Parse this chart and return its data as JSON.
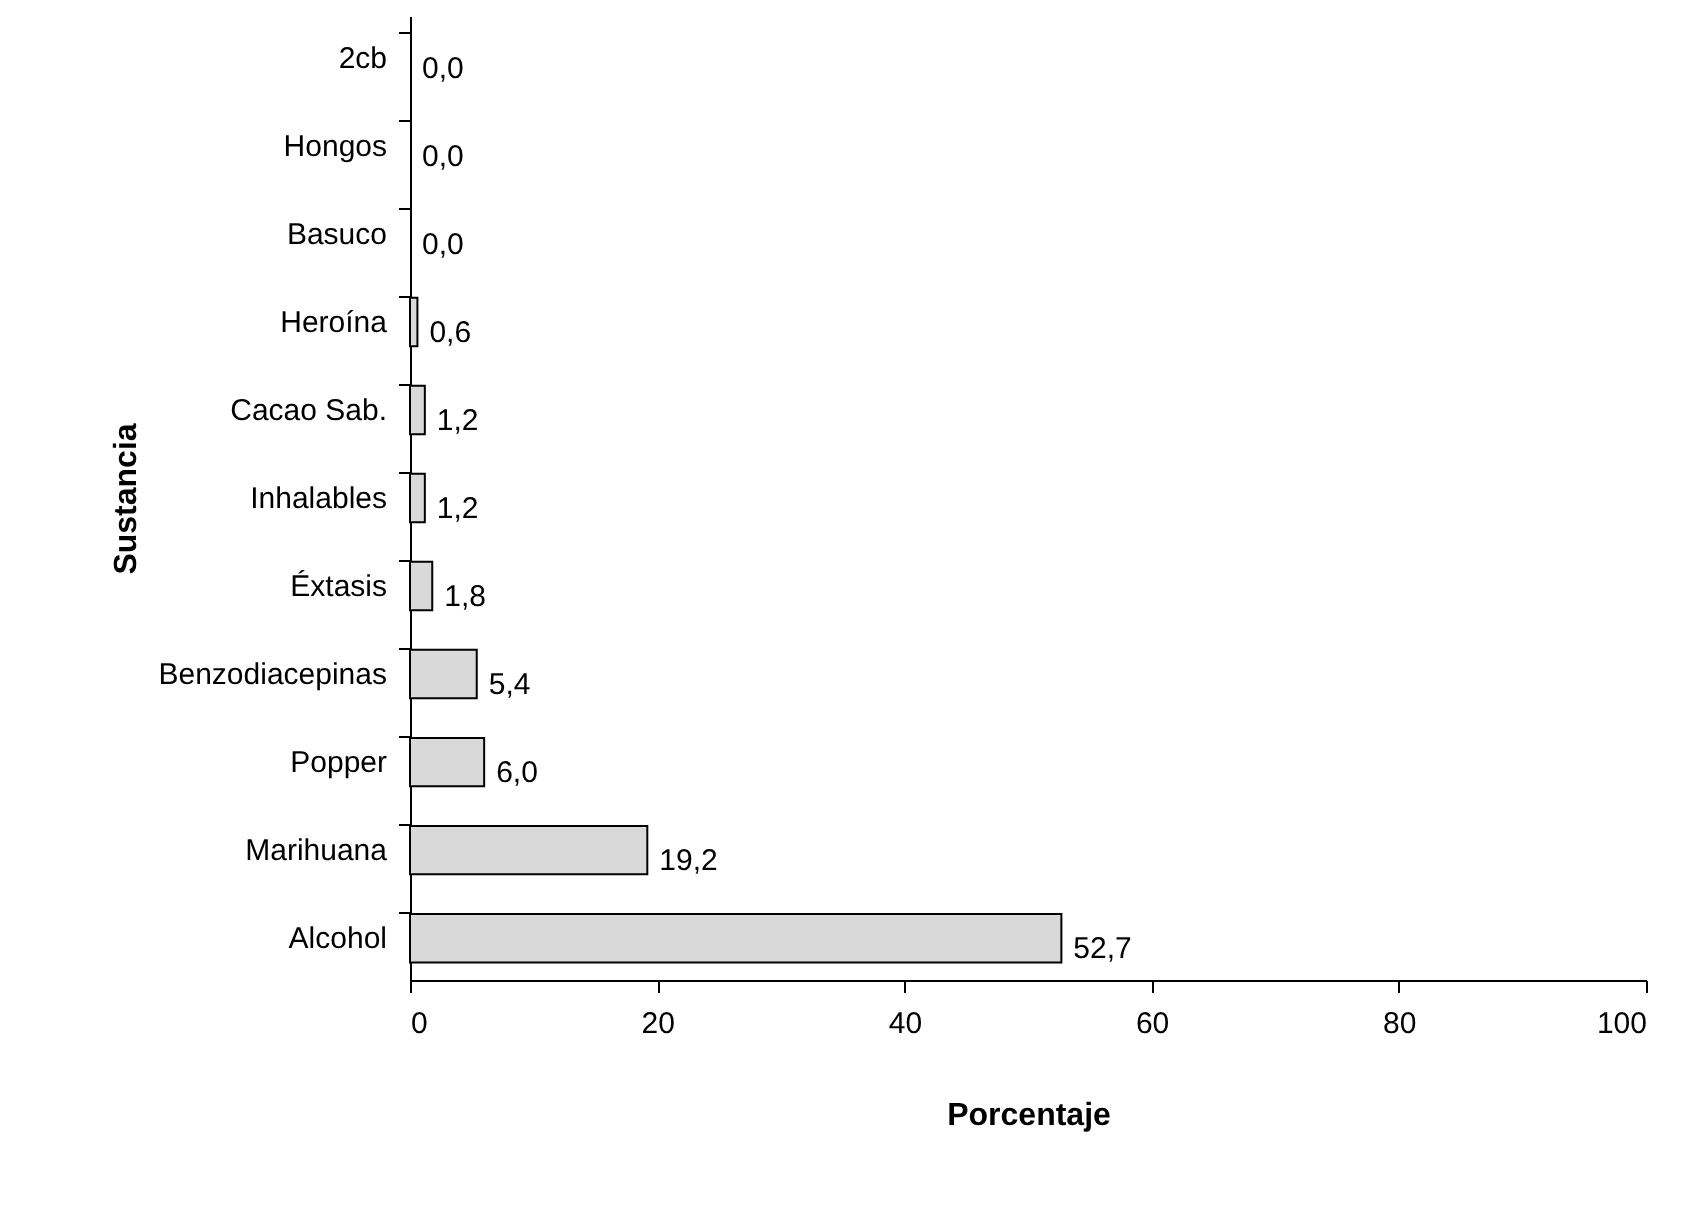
{
  "chart_data": {
    "type": "bar",
    "orientation": "horizontal",
    "xlabel": "Porcentaje",
    "ylabel": "Sustancia",
    "categories": [
      "2cb",
      "Hongos",
      "Basuco",
      "Heroína",
      "Cacao Sab.",
      "Inhalables",
      "Éxtasis",
      "Benzodiacepinas",
      "Popper",
      "Marihuana",
      "Alcohol"
    ],
    "values": [
      0.0,
      0.0,
      0.0,
      0.6,
      1.2,
      1.2,
      1.8,
      5.4,
      6.0,
      19.2,
      52.7
    ],
    "value_labels": [
      "0,0",
      "0,0",
      "0,0",
      "0,6",
      "1,2",
      "1,2",
      "1,8",
      "5,4",
      "6,0",
      "19,2",
      "52,7"
    ],
    "color": "#d9d9d9",
    "xlim": [
      0,
      100
    ],
    "xticks": [
      0,
      20,
      40,
      60,
      80,
      100
    ],
    "grid": false
  }
}
